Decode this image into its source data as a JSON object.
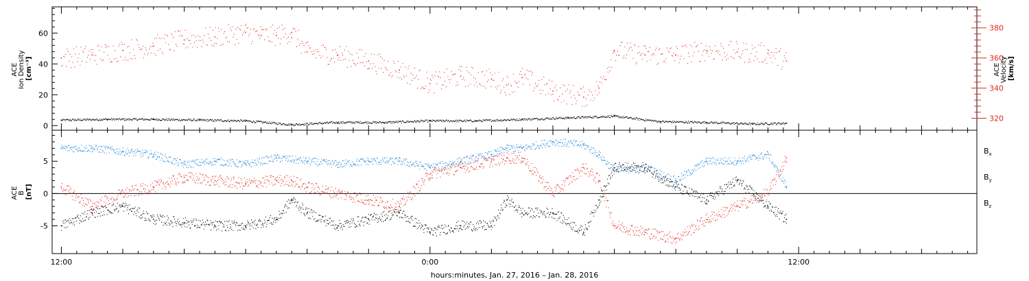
{
  "chart_data": [
    {
      "type": "scatter",
      "panel": "top",
      "ylabel_left_lines": [
        "ACE",
        "Ion Density",
        "[cm⁻³]"
      ],
      "ylabel_right_lines": [
        "ACE",
        "Velocity",
        "[km/s]"
      ],
      "ylim_left": [
        -3,
        77
      ],
      "ylim_right": [
        312,
        394
      ],
      "yticks_left": [
        "0",
        "20",
        "40",
        "60"
      ],
      "yticks_left_values": [
        0,
        20,
        40,
        60
      ],
      "yticks_right": [
        "320",
        "340",
        "360",
        "380"
      ],
      "yticks_right_values": [
        320,
        340,
        360,
        380
      ],
      "grid": false,
      "series": [
        {
          "axis": "left",
          "color": "#000000",
          "x_hours": [
            -12,
            -10.5,
            -9,
            -7.5,
            -6,
            -4.5,
            -3,
            -1.5,
            0,
            1.5,
            3,
            4.5,
            6,
            7.5,
            9,
            10.5,
            11.6
          ],
          "values": [
            3.5,
            4,
            4,
            3.5,
            3,
            0.6,
            2,
            2,
            3,
            3,
            4,
            5,
            6,
            2.5,
            2,
            1,
            1.5
          ]
        },
        {
          "axis": "right",
          "color": "#e0281e",
          "x_hours": [
            -12,
            -11,
            -10,
            -9,
            -8,
            -7,
            -6,
            -5.5,
            -5,
            -4.5,
            -4,
            -3,
            -2,
            -1,
            0,
            1,
            2,
            2.5,
            3,
            4,
            5,
            5.5,
            6,
            7,
            8,
            9,
            10,
            11,
            11.6
          ],
          "values": [
            360,
            362,
            365,
            368,
            372,
            374,
            377,
            375,
            375,
            377,
            364,
            362,
            358,
            352,
            343,
            348,
            346,
            342,
            347,
            338,
            334,
            340,
            365,
            362,
            362,
            365,
            364,
            363,
            358
          ]
        }
      ]
    },
    {
      "type": "scatter",
      "panel": "bottom",
      "ylabel_lines": [
        "ACE",
        "B",
        "[nT]"
      ],
      "ylim": [
        -9.3,
        9.8
      ],
      "yticks": [
        "-5",
        "0",
        "5"
      ],
      "yticks_values": [
        -5,
        0,
        5
      ],
      "zero_line": true,
      "grid": false,
      "legend_position": "right",
      "series": [
        {
          "name": "Bx",
          "color": "#000000",
          "x_hours": [
            -12,
            -11,
            -10,
            -9,
            -8,
            -7,
            -6,
            -5,
            -4.5,
            -4,
            -3,
            -2,
            -1,
            0,
            1,
            2,
            2.5,
            3,
            4,
            5,
            5.5,
            6,
            7,
            8,
            9,
            10,
            11,
            11.6
          ],
          "values": [
            -5,
            -3,
            -2,
            -4,
            -4.5,
            -5,
            -5,
            -4,
            -1,
            -3,
            -5,
            -4,
            -3,
            -6,
            -5,
            -5,
            -1,
            -3,
            -3,
            -6,
            -1,
            4,
            4,
            1,
            -1,
            2,
            -2,
            -4
          ]
        },
        {
          "name": "By",
          "color": "#1e82d2",
          "x_hours": [
            -12,
            -11,
            -10,
            -9,
            -8,
            -7,
            -6,
            -5,
            -4,
            -3,
            -2,
            -1,
            0,
            1,
            2,
            2.5,
            3,
            4,
            5,
            5.5,
            6,
            7,
            8,
            9,
            10,
            11,
            11.6
          ],
          "values": [
            7,
            7,
            6.5,
            6,
            4.5,
            5,
            4.5,
            5.5,
            5,
            4.5,
            5,
            5,
            4,
            5,
            6,
            7,
            7,
            8,
            7.5,
            6,
            3.5,
            4,
            2,
            5,
            5,
            6,
            1
          ]
        },
        {
          "name": "Bz",
          "color": "#e0281e",
          "x_hours": [
            -12,
            -11,
            -10,
            -9,
            -8,
            -7,
            -6,
            -5,
            -4.5,
            -4,
            -3,
            -2,
            -1,
            0,
            1,
            2,
            2.5,
            3,
            4,
            5,
            5.5,
            6,
            7,
            8,
            9,
            10,
            11,
            11.6
          ],
          "values": [
            1,
            -2,
            0,
            1,
            2.5,
            2,
            1.5,
            2,
            2,
            1,
            0,
            -1,
            -2,
            3,
            4,
            5,
            5.5,
            5.5,
            0,
            4,
            2,
            -5,
            -6,
            -7,
            -4,
            -2,
            0,
            5.5
          ]
        }
      ]
    }
  ],
  "legend": [
    {
      "label": "B",
      "sub": "x",
      "color": "#000000"
    },
    {
      "label": "B",
      "sub": "y",
      "color": "#1e82d2"
    },
    {
      "label": "B",
      "sub": "z",
      "color": "#e0281e"
    }
  ],
  "x_axis": {
    "xlim_hours": [
      -12.3,
      17.8
    ],
    "tick_labels": [
      "12:00",
      "0:00",
      "12:00"
    ],
    "tick_values_hours": [
      -12,
      0,
      12
    ],
    "xlabel": "hours:minutes, Jan. 27, 2016 – Jan. 28, 2016"
  }
}
